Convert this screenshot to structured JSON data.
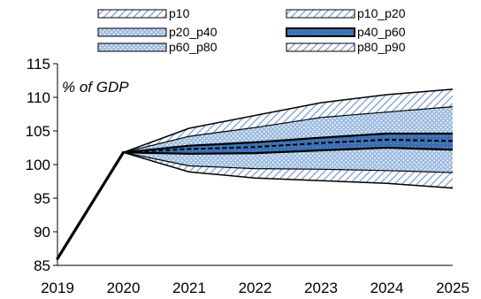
{
  "chart_data": {
    "type": "area",
    "title": "",
    "xlabel": "",
    "ylabel": "",
    "annotation": "% of GDP",
    "x": [
      "2019",
      "2020",
      "2021",
      "2022",
      "2023",
      "2024",
      "2025"
    ],
    "ylim": [
      85,
      115
    ],
    "yticks": [
      "85",
      "90",
      "95",
      "100",
      "105",
      "110",
      "115"
    ],
    "grid": false,
    "legend_position": "top",
    "history": {
      "name": "",
      "values": [
        86,
        101.8,
        null,
        null,
        null,
        null,
        null
      ]
    },
    "percentiles": {
      "p10": [
        null,
        101.8,
        98.9,
        98.0,
        97.6,
        97.2,
        96.5
      ],
      "p20": [
        null,
        101.8,
        99.8,
        99.4,
        99.3,
        99.1,
        98.8
      ],
      "p40": [
        null,
        101.8,
        101.6,
        101.7,
        102.1,
        102.5,
        102.2
      ],
      "p50": [
        null,
        101.8,
        102.3,
        102.6,
        103.2,
        103.7,
        103.5
      ],
      "p60": [
        null,
        101.8,
        102.8,
        103.3,
        104.0,
        104.6,
        104.6
      ],
      "p80": [
        null,
        101.8,
        104.2,
        105.5,
        107.0,
        107.8,
        108.6
      ],
      "p90": [
        null,
        101.8,
        105.4,
        107.3,
        109.2,
        110.4,
        111.2
      ]
    },
    "legend": [
      {
        "key": "p10",
        "label": "p10"
      },
      {
        "key": "p10_p20",
        "label": "p10_p20"
      },
      {
        "key": "p20_p40",
        "label": "p20_p40"
      },
      {
        "key": "p40_p60",
        "label": "p40_p60"
      },
      {
        "key": "p60_p80",
        "label": "p60_p80"
      },
      {
        "key": "p80_p90",
        "label": "p80_p90"
      }
    ],
    "colors": {
      "line": "#000000",
      "inner_band": "#2f5fa4",
      "mid_band": "#8fb0dc",
      "outer_band": "#c6d4ea"
    }
  }
}
